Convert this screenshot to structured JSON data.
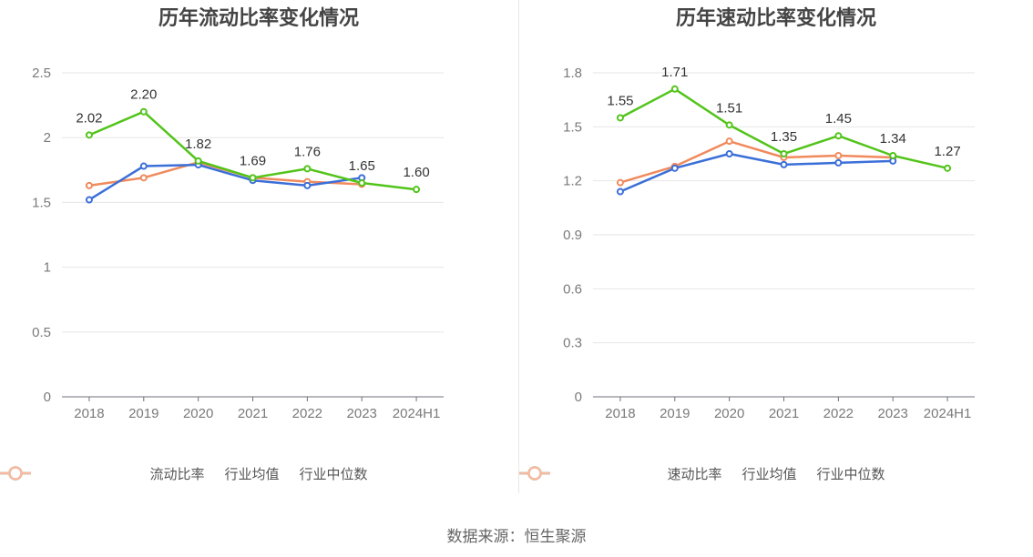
{
  "source_text": "数据来源：恒生聚源",
  "chart_data": [
    {
      "type": "line",
      "title": "历年流动比率变化情况",
      "categories": [
        "2018",
        "2019",
        "2020",
        "2021",
        "2022",
        "2023",
        "2024H1"
      ],
      "ylim": [
        0,
        2.5
      ],
      "yticks": [
        "0",
        "0.5",
        "1",
        "1.5",
        "2",
        "2.5"
      ],
      "grid": true,
      "legend_position": "bottom",
      "series": [
        {
          "name": "流动比率",
          "color": "#52c41a",
          "values": [
            2.02,
            2.2,
            1.82,
            1.69,
            1.76,
            1.65,
            1.6
          ],
          "labels": [
            "2.02",
            "2.20",
            "1.82",
            "1.69",
            "1.76",
            "1.65",
            "1.60"
          ]
        },
        {
          "name": "行业均值",
          "color": "#3b6fd8",
          "values": [
            1.52,
            1.78,
            1.79,
            1.67,
            1.63,
            1.69,
            null
          ]
        },
        {
          "name": "行业中位数",
          "color": "#f08a5d",
          "values": [
            1.63,
            1.69,
            1.81,
            1.69,
            1.66,
            1.64,
            null
          ]
        }
      ]
    },
    {
      "type": "line",
      "title": "历年速动比率变化情况",
      "categories": [
        "2018",
        "2019",
        "2020",
        "2021",
        "2022",
        "2023",
        "2024H1"
      ],
      "ylim": [
        0,
        1.8
      ],
      "yticks": [
        "0",
        "0.3",
        "0.6",
        "0.9",
        "1.2",
        "1.5",
        "1.8"
      ],
      "grid": true,
      "legend_position": "bottom",
      "series": [
        {
          "name": "速动比率",
          "color": "#52c41a",
          "values": [
            1.55,
            1.71,
            1.51,
            1.35,
            1.45,
            1.34,
            1.27
          ],
          "labels": [
            "1.55",
            "1.71",
            "1.51",
            "1.35",
            "1.45",
            "1.34",
            "1.27"
          ]
        },
        {
          "name": "行业均值",
          "color": "#3b6fd8",
          "values": [
            1.14,
            1.27,
            1.35,
            1.29,
            1.3,
            1.31,
            null
          ]
        },
        {
          "name": "行业中位数",
          "color": "#f08a5d",
          "values": [
            1.19,
            1.28,
            1.42,
            1.33,
            1.34,
            1.33,
            null
          ]
        }
      ]
    }
  ]
}
